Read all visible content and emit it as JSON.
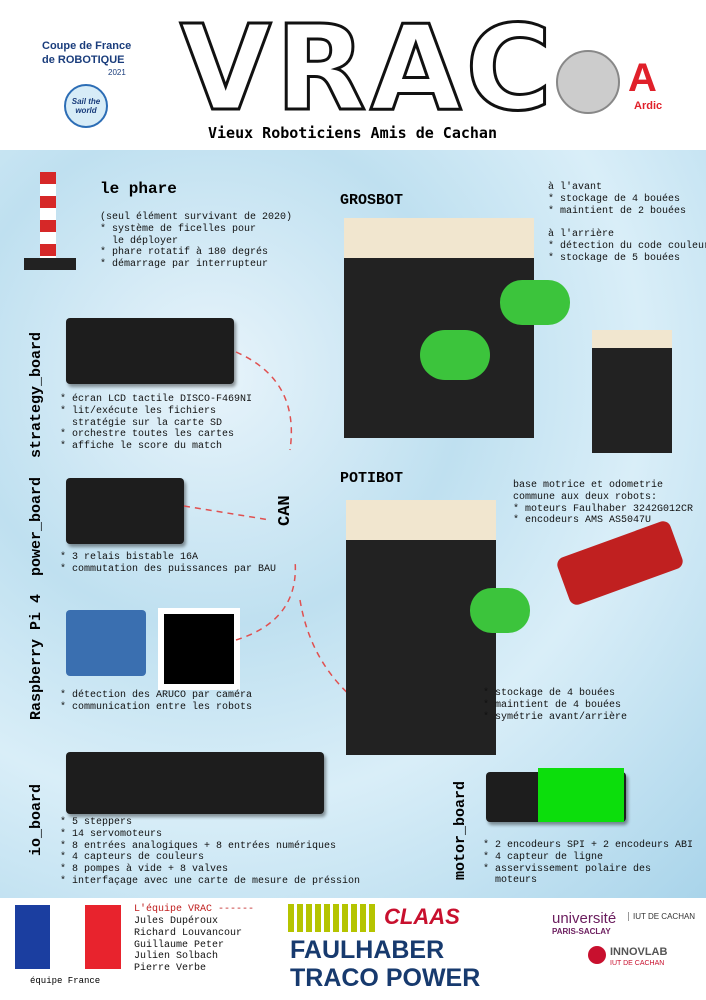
{
  "header": {
    "cup_line1": "Coupe de France",
    "cup_line2": "de ROBOTIQUE",
    "cup_year": "2021",
    "sail": "Sail the world",
    "title": "VRAC",
    "subtitle": "Vieux Roboticiens Amis de Cachan",
    "ardic": "Ardic"
  },
  "phare": {
    "title": "le phare",
    "lines": [
      "(seul élément survivant de 2020)",
      "* système de ficelles pour",
      "  le déployer",
      "* phare rotatif à 180 degrés",
      "* démarrage par interrupteur"
    ]
  },
  "strategy_board": {
    "label": "strategy_board",
    "lines": [
      "* écran LCD tactile DISCO-F469NI",
      "* lit/exécute les fichiers",
      "  stratégie sur la carte SD",
      "* orchestre toutes les cartes",
      "* affiche le score du match"
    ]
  },
  "power_board": {
    "label": "power_board",
    "lines": [
      "* 3 relais bistable 16A",
      "* commutation des puissances par BAU"
    ]
  },
  "raspberry": {
    "label": "Raspberry Pi 4",
    "lines": [
      "* détection des ARUCO par caméra",
      "* communication entre les robots"
    ]
  },
  "io_board": {
    "label": "io_board",
    "lines": [
      "* 5 steppers",
      "* 14 servomoteurs",
      "* 8 entrées analogiques + 8 entrées numériques",
      "* 4 capteurs de couleurs",
      "* 8 pompes à vide + 8 valves",
      "* interfaçage avec une carte de mesure de préssion"
    ]
  },
  "can": "CAN",
  "grosbot": {
    "title": "GROSBOT",
    "lines": [
      "à l'avant",
      "* stockage de 4 bouées",
      "* maintient de 2 bouées",
      "",
      "à l'arrière",
      "* détection du code couleur",
      "* stockage de 5 bouées"
    ]
  },
  "potibot": {
    "title": "POTIBOT",
    "base_lines": [
      "base motrice et odometrie",
      "commune aux deux robots:",
      "* moteurs Faulhaber 3242G012CR",
      "* encodeurs AMS AS5047U"
    ],
    "lines": [
      "* stockage de 4 bouées",
      "* maintient de 4 bouées",
      "* symétrie avant/arrière"
    ]
  },
  "motor_board": {
    "label": "motor_board",
    "lines": [
      "* 2 encodeurs SPI + 2 encodeurs ABI",
      "* 4 capteur de ligne",
      "* asservissement polaire des",
      "  moteurs"
    ]
  },
  "footer": {
    "team_title": "L'équipe VRAC ------",
    "members": [
      "Jules Dupéroux",
      "Richard Louvancour",
      "Guillaume Peter",
      "Julien Solbach",
      "Pierre Verbe"
    ],
    "flag_caption": "équipe France",
    "sponsors": [
      "CLAAS",
      "FAULHABER",
      "TRACO POWER"
    ],
    "univ_line1": "université",
    "univ_line2": "PARIS-SACLAY",
    "iut": "IUT DE CACHAN",
    "innovlab": "INNOVLAB",
    "innovlab_sub": "IUT DE CACHAN"
  }
}
